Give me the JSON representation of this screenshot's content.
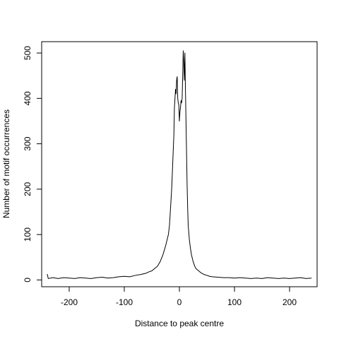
{
  "chart_data": {
    "type": "line",
    "title": "",
    "xlabel": "Distance to peak centre",
    "ylabel": "Number of motif occurrences",
    "xlim": [
      -250,
      250
    ],
    "ylim": [
      -15,
      525
    ],
    "xticks": [
      -200,
      -100,
      0,
      100,
      200
    ],
    "xtick_labels": [
      "-200",
      "-100",
      "0",
      "100",
      "200"
    ],
    "yticks": [
      0,
      100,
      200,
      300,
      400,
      500
    ],
    "ytick_labels": [
      "0",
      "100",
      "200",
      "300",
      "400",
      "500"
    ],
    "grid": false,
    "legend": "none",
    "series": [
      {
        "color": "#000000",
        "x": [
          -240,
          -238,
          -230,
          -220,
          -210,
          -200,
          -190,
          -180,
          -170,
          -160,
          -150,
          -140,
          -130,
          -120,
          -110,
          -100,
          -90,
          -80,
          -70,
          -60,
          -55,
          -50,
          -45,
          -40,
          -35,
          -30,
          -25,
          -22,
          -20,
          -18,
          -16,
          -14,
          -12,
          -10,
          -9,
          -8,
          -7,
          -6,
          -5,
          -4,
          -3,
          -2,
          -1,
          0,
          1,
          2,
          3,
          4,
          5,
          6,
          7,
          8,
          9,
          10,
          11,
          12,
          13,
          14,
          15,
          16,
          18,
          20,
          22,
          25,
          28,
          30,
          35,
          40,
          45,
          50,
          55,
          60,
          70,
          80,
          90,
          100,
          110,
          120,
          130,
          140,
          150,
          160,
          170,
          180,
          190,
          200,
          210,
          220,
          230,
          240
        ],
        "y": [
          13,
          3,
          5,
          3,
          5,
          4,
          3,
          5,
          4,
          3,
          5,
          6,
          4,
          5,
          7,
          8,
          7,
          10,
          12,
          15,
          18,
          20,
          25,
          30,
          40,
          55,
          75,
          90,
          100,
          120,
          160,
          200,
          260,
          320,
          380,
          400,
          420,
          410,
          440,
          448,
          400,
          390,
          385,
          350,
          370,
          380,
          395,
          390,
          400,
          450,
          505,
          480,
          440,
          500,
          420,
          350,
          280,
          210,
          160,
          120,
          90,
          70,
          55,
          40,
          30,
          25,
          20,
          15,
          12,
          10,
          8,
          7,
          6,
          5,
          5,
          4,
          5,
          4,
          3,
          4,
          3,
          5,
          4,
          3,
          4,
          3,
          4,
          5,
          3,
          4
        ]
      }
    ]
  }
}
